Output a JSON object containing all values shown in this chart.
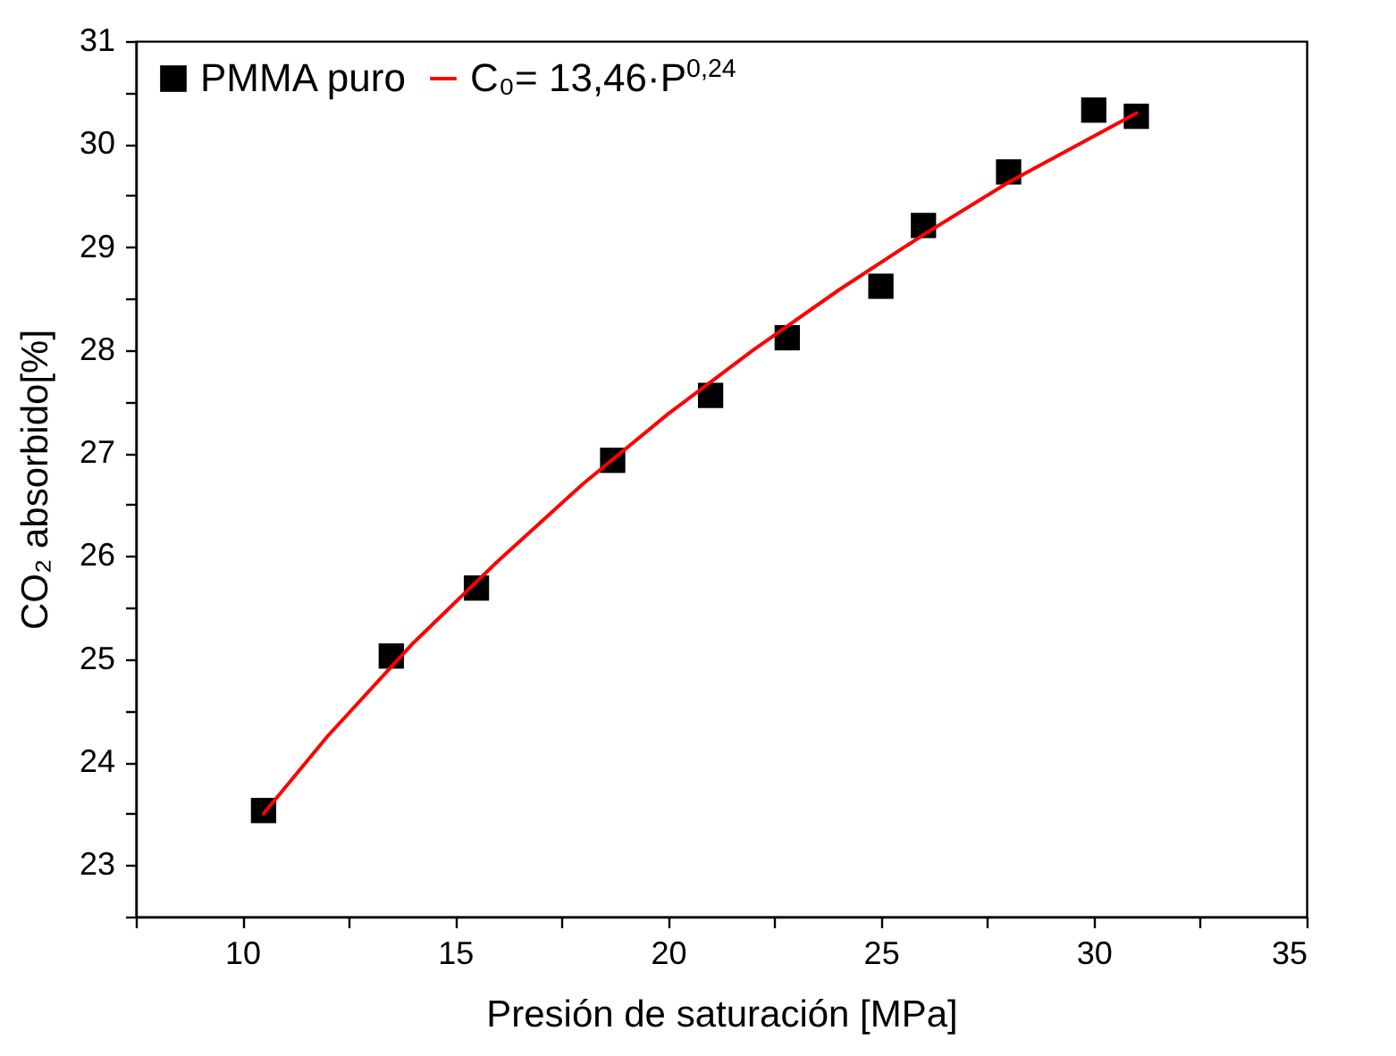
{
  "chart_data": {
    "type": "scatter",
    "xlabel": "Presión de saturación [MPa]",
    "ylabel": "CO₂ absorbido[%]",
    "xlim": [
      7.5,
      35
    ],
    "xticks": [
      {
        "value": 7.5,
        "label": null
      },
      10,
      {
        "value": 12.5,
        "label": null
      },
      15,
      {
        "value": 17.5,
        "label": null
      },
      20,
      {
        "value": 22.5,
        "label": null
      },
      25,
      {
        "value": 27.5,
        "label": null
      },
      30,
      {
        "value": 32.5,
        "label": null
      },
      35
    ],
    "ylim": [
      22.5,
      31
    ],
    "yticks": [
      {
        "value": 22.5,
        "label": null
      },
      23,
      {
        "value": 23.5,
        "label": null
      },
      24,
      {
        "value": 24.5,
        "label": null
      },
      25,
      {
        "value": 25.5,
        "label": null
      },
      26,
      {
        "value": 26.5,
        "label": null
      },
      27,
      {
        "value": 27.5,
        "label": null
      },
      28,
      {
        "value": 28.5,
        "label": null
      },
      29,
      {
        "value": 29.5,
        "label": null
      },
      30,
      {
        "value": 30.5,
        "label": null
      },
      31
    ],
    "grid": false,
    "legend": "top left",
    "series": [
      {
        "name": "PMMA puro",
        "marker": "square",
        "color": "#000000",
        "x": [
          10.5,
          13.5,
          15.5,
          18.7,
          21,
          22.8,
          25,
          26,
          28,
          30,
          31
        ],
        "values": [
          23.53,
          25.03,
          25.69,
          26.93,
          27.56,
          28.12,
          28.62,
          29.21,
          29.73,
          30.33,
          30.27
        ]
      },
      {
        "name": "C₀= 13,46·P$^{0,24}$",
        "type": "line",
        "marker": "none",
        "color": "#ff0000",
        "x": [
          10.5,
          12,
          14,
          16,
          18,
          20,
          22,
          24,
          26,
          28,
          31
        ],
        "values": [
          23.5,
          24.25,
          25.15,
          25.95,
          26.7,
          27.38,
          28.0,
          28.58,
          29.12,
          29.63,
          30.3
        ]
      }
    ]
  }
}
